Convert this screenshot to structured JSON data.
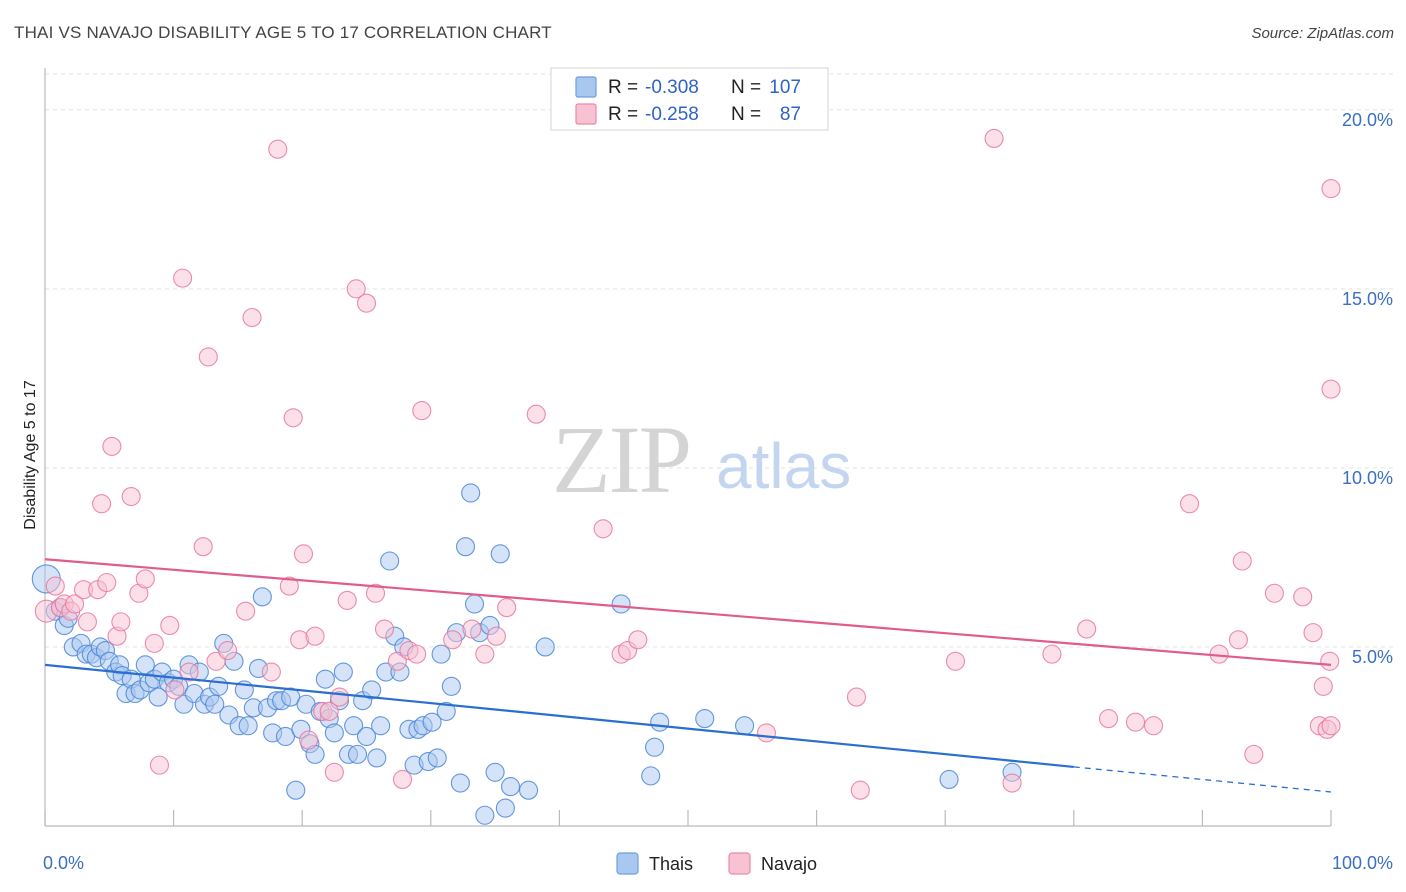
{
  "chart_data": {
    "type": "scatter",
    "title": "THAI VS NAVAJO DISABILITY AGE 5 TO 17 CORRELATION CHART",
    "source": "Source: ZipAtlas.com",
    "watermark": {
      "zip": "ZIP",
      "atlas": "atlas"
    },
    "xlabel": "",
    "ylabel": "Disability Age 5 to 17",
    "xlim": [
      0,
      100
    ],
    "ylim": [
      0,
      21
    ],
    "x_ticks": [
      0,
      10,
      20,
      30,
      40,
      50,
      60,
      70,
      80,
      90,
      100
    ],
    "x_tick_labels": [
      {
        "value": 0,
        "label": "0.0%"
      },
      {
        "value": 100,
        "label": "100.0%"
      }
    ],
    "y_tick_labels": [
      {
        "value": 5,
        "label": "5.0%"
      },
      {
        "value": 10,
        "label": "10.0%"
      },
      {
        "value": 15,
        "label": "15.0%"
      },
      {
        "value": 20,
        "label": "20.0%"
      }
    ],
    "grid": true,
    "legend": {
      "position": "top-center",
      "entries": [
        {
          "series": "Thais",
          "r_label": "R =",
          "r_value": "-0.308",
          "n_label": "N =",
          "n_value": "107"
        },
        {
          "series": "Navajo",
          "r_label": "R =",
          "r_value": "-0.258",
          "n_label": "N =",
          "n_value": "87"
        }
      ]
    },
    "series": [
      {
        "name": "Thais",
        "color": "#4a86d8",
        "fill": "#a9c8ef",
        "line_color": "#2a6fd0",
        "trend": {
          "x0": 0,
          "y0": 4.5,
          "x1": 80,
          "y1": 1.65,
          "dashed_to_x": 100,
          "dashed_to_y": 0.95
        },
        "points": [
          [
            0.1,
            6.9
          ],
          [
            0.8,
            6.0
          ],
          [
            1.2,
            6.1
          ],
          [
            1.5,
            5.6
          ],
          [
            1.8,
            5.8
          ],
          [
            2.2,
            5.0
          ],
          [
            2.8,
            5.1
          ],
          [
            3.2,
            4.8
          ],
          [
            3.6,
            4.8
          ],
          [
            4.0,
            4.7
          ],
          [
            4.3,
            5.0
          ],
          [
            4.7,
            4.9
          ],
          [
            5.0,
            4.6
          ],
          [
            5.5,
            4.3
          ],
          [
            5.8,
            4.5
          ],
          [
            6.0,
            4.2
          ],
          [
            6.3,
            3.7
          ],
          [
            6.7,
            4.1
          ],
          [
            7.0,
            3.7
          ],
          [
            7.4,
            3.8
          ],
          [
            7.8,
            4.5
          ],
          [
            8.1,
            4.0
          ],
          [
            8.5,
            4.1
          ],
          [
            8.8,
            3.6
          ],
          [
            9.1,
            4.3
          ],
          [
            9.6,
            4.0
          ],
          [
            10.0,
            4.1
          ],
          [
            10.4,
            3.9
          ],
          [
            10.8,
            3.4
          ],
          [
            11.2,
            4.5
          ],
          [
            11.6,
            3.7
          ],
          [
            12.0,
            4.3
          ],
          [
            12.4,
            3.4
          ],
          [
            12.8,
            3.6
          ],
          [
            13.2,
            3.4
          ],
          [
            13.5,
            3.9
          ],
          [
            13.9,
            5.1
          ],
          [
            14.3,
            3.1
          ],
          [
            14.7,
            4.6
          ],
          [
            15.1,
            2.8
          ],
          [
            15.5,
            3.8
          ],
          [
            15.8,
            2.8
          ],
          [
            16.2,
            3.3
          ],
          [
            16.6,
            4.4
          ],
          [
            16.9,
            6.4
          ],
          [
            17.3,
            3.3
          ],
          [
            17.7,
            2.6
          ],
          [
            18.0,
            3.5
          ],
          [
            18.4,
            3.5
          ],
          [
            18.7,
            2.5
          ],
          [
            19.1,
            3.6
          ],
          [
            19.5,
            1.0
          ],
          [
            19.9,
            2.7
          ],
          [
            20.3,
            3.4
          ],
          [
            20.6,
            2.3
          ],
          [
            21.0,
            2.0
          ],
          [
            21.4,
            3.2
          ],
          [
            21.8,
            4.1
          ],
          [
            22.1,
            3.0
          ],
          [
            22.5,
            2.6
          ],
          [
            22.9,
            3.5
          ],
          [
            23.2,
            4.3
          ],
          [
            23.6,
            2.0
          ],
          [
            24.0,
            2.8
          ],
          [
            24.3,
            2.0
          ],
          [
            24.7,
            3.5
          ],
          [
            25.0,
            2.5
          ],
          [
            25.4,
            3.8
          ],
          [
            25.8,
            1.9
          ],
          [
            26.1,
            2.8
          ],
          [
            26.5,
            4.3
          ],
          [
            26.8,
            7.4
          ],
          [
            27.2,
            5.3
          ],
          [
            27.6,
            4.3
          ],
          [
            27.9,
            5.0
          ],
          [
            28.3,
            2.7
          ],
          [
            28.7,
            1.7
          ],
          [
            29.0,
            2.7
          ],
          [
            29.4,
            2.8
          ],
          [
            29.8,
            1.8
          ],
          [
            30.1,
            2.9
          ],
          [
            30.5,
            1.9
          ],
          [
            30.8,
            4.8
          ],
          [
            31.2,
            3.2
          ],
          [
            31.6,
            3.9
          ],
          [
            32.0,
            5.4
          ],
          [
            32.3,
            1.2
          ],
          [
            32.7,
            7.8
          ],
          [
            33.1,
            9.3
          ],
          [
            33.4,
            6.2
          ],
          [
            33.8,
            5.4
          ],
          [
            34.2,
            0.3
          ],
          [
            34.6,
            5.6
          ],
          [
            35.0,
            1.5
          ],
          [
            35.4,
            7.6
          ],
          [
            35.8,
            0.5
          ],
          [
            36.2,
            1.1
          ],
          [
            37.6,
            1.0
          ],
          [
            38.9,
            5.0
          ],
          [
            44.8,
            6.2
          ],
          [
            47.1,
            1.4
          ],
          [
            47.4,
            2.2
          ],
          [
            47.8,
            2.9
          ],
          [
            51.3,
            3.0
          ],
          [
            54.4,
            2.8
          ],
          [
            70.3,
            1.3
          ],
          [
            75.2,
            1.5
          ]
        ]
      },
      {
        "name": "Navajo",
        "color": "#e8789e",
        "fill": "#f8c2d3",
        "line_color": "#e05c8e",
        "trend": {
          "x0": 0,
          "y0": 7.45,
          "x1": 100,
          "y1": 4.5
        },
        "points": [
          [
            0.1,
            6.0
          ],
          [
            0.8,
            6.7
          ],
          [
            1.2,
            6.1
          ],
          [
            1.5,
            6.2
          ],
          [
            2.0,
            6.0
          ],
          [
            2.3,
            6.2
          ],
          [
            3.0,
            6.6
          ],
          [
            3.3,
            5.7
          ],
          [
            4.1,
            6.6
          ],
          [
            4.4,
            9.0
          ],
          [
            4.8,
            6.8
          ],
          [
            5.2,
            10.6
          ],
          [
            5.6,
            5.3
          ],
          [
            5.9,
            5.7
          ],
          [
            6.7,
            9.2
          ],
          [
            7.3,
            6.5
          ],
          [
            7.8,
            6.9
          ],
          [
            8.5,
            5.1
          ],
          [
            8.9,
            1.7
          ],
          [
            9.7,
            5.6
          ],
          [
            10.1,
            3.8
          ],
          [
            10.7,
            15.3
          ],
          [
            11.2,
            4.3
          ],
          [
            12.3,
            7.8
          ],
          [
            12.7,
            13.1
          ],
          [
            13.3,
            4.6
          ],
          [
            14.2,
            4.9
          ],
          [
            15.6,
            6.0
          ],
          [
            16.1,
            14.2
          ],
          [
            17.6,
            4.3
          ],
          [
            18.1,
            18.9
          ],
          [
            19.0,
            6.7
          ],
          [
            19.3,
            11.4
          ],
          [
            19.8,
            5.2
          ],
          [
            20.1,
            7.6
          ],
          [
            20.5,
            2.4
          ],
          [
            21.0,
            5.3
          ],
          [
            21.6,
            3.2
          ],
          [
            22.1,
            3.2
          ],
          [
            22.5,
            1.5
          ],
          [
            22.9,
            3.6
          ],
          [
            23.5,
            6.3
          ],
          [
            24.2,
            15.0
          ],
          [
            25.0,
            14.6
          ],
          [
            25.7,
            6.5
          ],
          [
            26.4,
            5.5
          ],
          [
            27.4,
            4.6
          ],
          [
            27.8,
            1.3
          ],
          [
            28.3,
            4.9
          ],
          [
            28.9,
            4.8
          ],
          [
            29.3,
            11.6
          ],
          [
            31.7,
            5.2
          ],
          [
            33.2,
            5.5
          ],
          [
            34.2,
            4.8
          ],
          [
            35.1,
            5.3
          ],
          [
            35.9,
            6.1
          ],
          [
            38.2,
            11.5
          ],
          [
            43.4,
            8.3
          ],
          [
            44.8,
            4.8
          ],
          [
            45.3,
            4.9
          ],
          [
            46.1,
            5.2
          ],
          [
            56.1,
            2.6
          ],
          [
            63.1,
            3.6
          ],
          [
            63.4,
            1.0
          ],
          [
            70.8,
            4.6
          ],
          [
            73.8,
            19.2
          ],
          [
            75.2,
            1.2
          ],
          [
            78.3,
            4.8
          ],
          [
            81.0,
            5.5
          ],
          [
            82.7,
            3.0
          ],
          [
            84.8,
            2.9
          ],
          [
            86.2,
            2.8
          ],
          [
            89.0,
            9.0
          ],
          [
            91.3,
            4.8
          ],
          [
            92.8,
            5.2
          ],
          [
            93.1,
            7.4
          ],
          [
            94.0,
            2.0
          ],
          [
            95.6,
            6.5
          ],
          [
            97.8,
            6.4
          ],
          [
            98.6,
            5.4
          ],
          [
            99.1,
            2.8
          ],
          [
            99.4,
            3.9
          ],
          [
            99.7,
            2.7
          ],
          [
            99.9,
            4.6
          ],
          [
            100.0,
            2.8
          ],
          [
            100.0,
            17.8
          ],
          [
            100.0,
            12.2
          ]
        ]
      }
    ]
  }
}
